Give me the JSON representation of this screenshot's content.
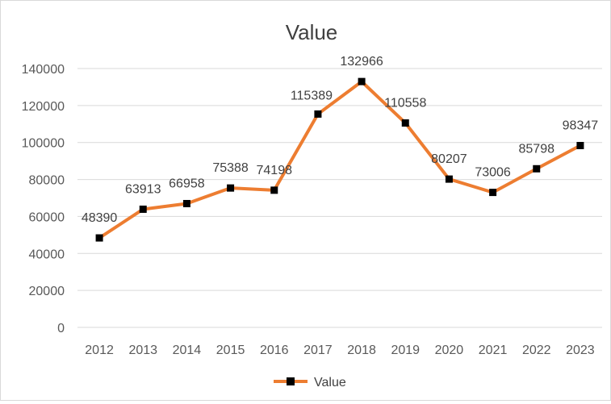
{
  "chart_data": {
    "type": "line",
    "title": "Value",
    "xlabel": "",
    "ylabel": "",
    "categories": [
      "2012",
      "2013",
      "2014",
      "2015",
      "2016",
      "2017",
      "2018",
      "2019",
      "2020",
      "2021",
      "2022",
      "2023"
    ],
    "series": [
      {
        "name": "Value",
        "values": [
          48390,
          63913,
          66958,
          75388,
          74198,
          115389,
          132966,
          110558,
          80207,
          73006,
          85798,
          98347
        ],
        "color": "#ed7d31",
        "marker": "square",
        "marker_color": "#000000"
      }
    ],
    "ylim": [
      0,
      140000
    ],
    "yticks": [
      0,
      20000,
      40000,
      60000,
      80000,
      100000,
      120000,
      140000
    ],
    "grid": true,
    "grid_color": "#d9d9d9",
    "data_labels": true,
    "legend": {
      "position": "bottom"
    }
  }
}
